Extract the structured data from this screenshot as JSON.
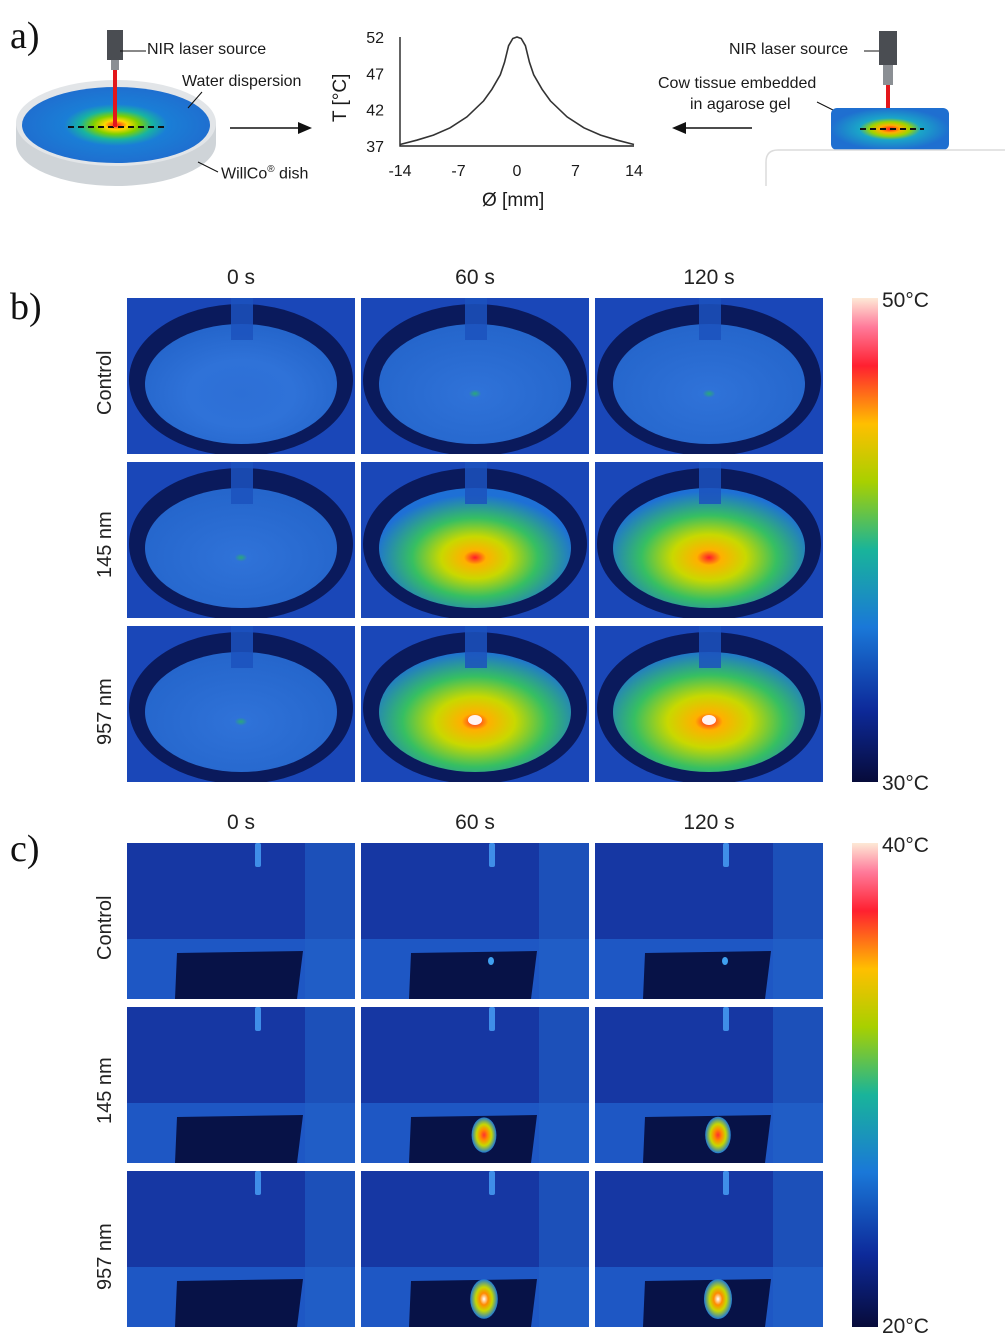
{
  "panel_a": {
    "letter": "a)",
    "left_labels": {
      "laser": "NIR laser source",
      "dispersion": "Water dispersion",
      "dish": "WillCo",
      "dish_reg": "®",
      "dish_suffix": " dish"
    },
    "right_labels": {
      "laser": "NIR laser source",
      "tissue_line1": "Cow tissue embedded",
      "tissue_line2": "in agarose gel"
    },
    "chart_data": {
      "type": "line",
      "xlabel": "Ø [mm]",
      "ylabel": "T [°C]",
      "xlim": [
        -14,
        14
      ],
      "ylim": [
        37,
        52
      ],
      "xticks": [
        "-14",
        "-7",
        "0",
        "7",
        "14"
      ],
      "yticks": [
        "52",
        "47",
        "42",
        "37"
      ],
      "series": [
        {
          "x": [
            -14,
            -12,
            -10,
            -8,
            -6,
            -4,
            -3,
            -2,
            -1.5,
            -1,
            -0.5,
            0,
            0.5,
            1,
            1.5,
            2,
            3,
            4,
            6,
            8,
            10,
            12,
            14
          ],
          "y": [
            37.2,
            37.8,
            38.5,
            39.5,
            41.0,
            43.2,
            44.8,
            46.8,
            48.5,
            50.8,
            51.8,
            52.0,
            51.8,
            50.8,
            48.5,
            46.8,
            44.8,
            43.2,
            41.0,
            39.5,
            38.5,
            37.8,
            37.2
          ]
        }
      ]
    }
  },
  "panel_b": {
    "letter": "b)",
    "columns": [
      "0 s",
      "60 s",
      "120 s"
    ],
    "rows": [
      "Control",
      "145 nm",
      "957 nm"
    ],
    "colorbar": {
      "max": "50°C",
      "min": "30°C"
    }
  },
  "panel_c": {
    "letter": "c)",
    "columns": [
      "0 s",
      "60 s",
      "120 s"
    ],
    "rows": [
      "Control",
      "145 nm",
      "957 nm"
    ],
    "colorbar": {
      "max": "40°C",
      "min": "20°C"
    }
  }
}
